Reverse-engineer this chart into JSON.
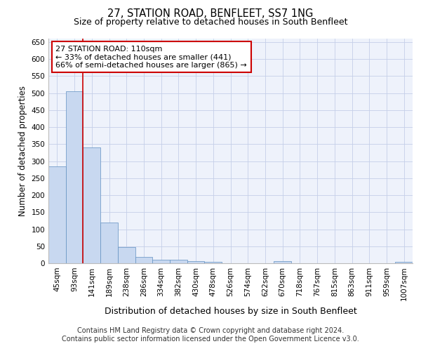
{
  "title": "27, STATION ROAD, BENFLEET, SS7 1NG",
  "subtitle": "Size of property relative to detached houses in South Benfleet",
  "xlabel": "Distribution of detached houses by size in South Benfleet",
  "ylabel": "Number of detached properties",
  "categories": [
    "45sqm",
    "93sqm",
    "141sqm",
    "189sqm",
    "238sqm",
    "286sqm",
    "334sqm",
    "382sqm",
    "430sqm",
    "478sqm",
    "526sqm",
    "574sqm",
    "622sqm",
    "670sqm",
    "718sqm",
    "767sqm",
    "815sqm",
    "863sqm",
    "911sqm",
    "959sqm",
    "1007sqm"
  ],
  "values": [
    284,
    505,
    340,
    120,
    47,
    18,
    10,
    10,
    7,
    5,
    0,
    0,
    0,
    7,
    0,
    0,
    0,
    0,
    0,
    0,
    5
  ],
  "bar_color": "#c8d8f0",
  "bar_edge_color": "#6090c0",
  "bar_edge_width": 0.5,
  "annotation_line1": "27 STATION ROAD: 110sqm",
  "annotation_line2": "← 33% of detached houses are smaller (441)",
  "annotation_line3": "66% of semi-detached houses are larger (865) →",
  "annotation_box_facecolor": "#ffffff",
  "annotation_box_edgecolor": "#cc0000",
  "property_line_x": 1.5,
  "property_line_color": "#cc0000",
  "ylim": [
    0,
    660
  ],
  "yticks": [
    0,
    50,
    100,
    150,
    200,
    250,
    300,
    350,
    400,
    450,
    500,
    550,
    600,
    650
  ],
  "footnote_line1": "Contains HM Land Registry data © Crown copyright and database right 2024.",
  "footnote_line2": "Contains public sector information licensed under the Open Government Licence v3.0.",
  "background_color": "#eef2fb",
  "grid_color": "#c5cfe8",
  "title_fontsize": 10.5,
  "subtitle_fontsize": 9,
  "xlabel_fontsize": 9,
  "ylabel_fontsize": 8.5,
  "tick_fontsize": 7.5,
  "annot_fontsize": 8,
  "footnote_fontsize": 7
}
